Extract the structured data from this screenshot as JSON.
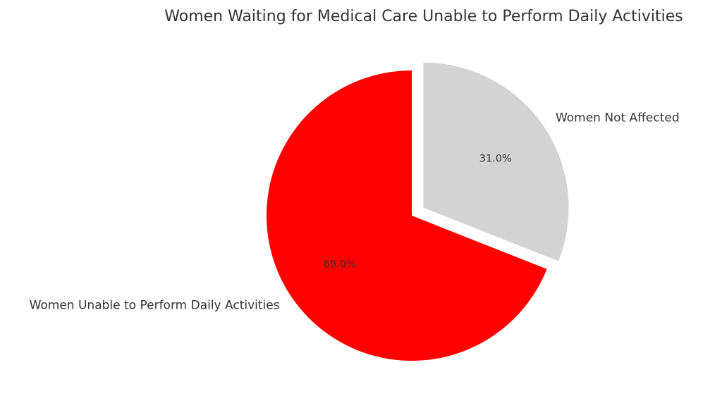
{
  "chart_data": {
    "type": "pie",
    "title": "Women Waiting for Medical Care Unable to Perform Daily Activities",
    "start_angle_deg": 90,
    "direction": "clockwise",
    "slices": [
      {
        "label": "Women Not Affected",
        "value": 31.0,
        "pct_label": "31.0%",
        "color": "#d3d3d3",
        "exploded": true
      },
      {
        "label": "Women Unable to Perform Daily Activities",
        "value": 69.0,
        "pct_label": "69.0%",
        "color": "#ff0000",
        "exploded": false
      }
    ]
  }
}
